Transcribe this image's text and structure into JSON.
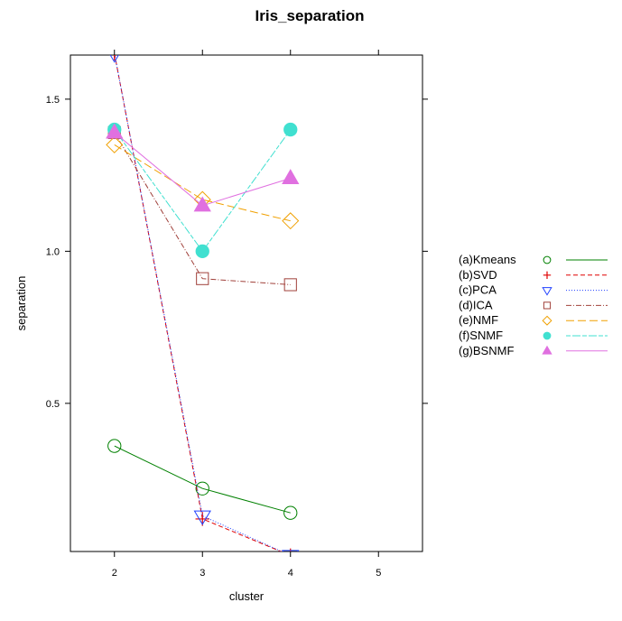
{
  "chart_data": {
    "type": "line",
    "title": "Iris_separation",
    "xlabel": "cluster",
    "ylabel": "separation",
    "x": [
      2,
      3,
      4
    ],
    "xlim": [
      1.5,
      5.5
    ],
    "ylim": [
      0.013,
      1.645
    ],
    "xticks": [
      2,
      3,
      4,
      5
    ],
    "yticks": [
      0.5,
      1.0,
      1.5
    ],
    "ytick_labels": [
      "0.5",
      "1.0",
      "1.5"
    ],
    "legend_position": "right",
    "series": [
      {
        "name": "(a)Kmeans",
        "color": "#008000",
        "line": "solid",
        "marker": "circle-open",
        "values": [
          0.36,
          0.22,
          0.14
        ]
      },
      {
        "name": "(b)SVD",
        "color": "#e00000",
        "line": "dashed",
        "marker": "plus",
        "values": [
          1.65,
          0.12,
          0.0
        ]
      },
      {
        "name": "(c)PCA",
        "color": "#2040ff",
        "line": "dotted",
        "marker": "triangle-down-open",
        "values": [
          1.65,
          0.13,
          0.0
        ]
      },
      {
        "name": "(d)ICA",
        "color": "#a0403a",
        "line": "dotdash",
        "marker": "square-open",
        "values": [
          1.39,
          0.91,
          0.89
        ]
      },
      {
        "name": "(e)NMF",
        "color": "#f0a000",
        "line": "longdash",
        "marker": "diamond-open",
        "values": [
          1.35,
          1.17,
          1.1
        ]
      },
      {
        "name": "(f)SNMF",
        "color": "#40e0d0",
        "line": "twodash",
        "marker": "circle-filled",
        "values": [
          1.4,
          1.0,
          1.4
        ]
      },
      {
        "name": "(g)BSNMF",
        "color": "#e070e0",
        "line": "solid",
        "marker": "triangle-filled",
        "values": [
          1.39,
          1.15,
          1.24
        ]
      }
    ]
  }
}
